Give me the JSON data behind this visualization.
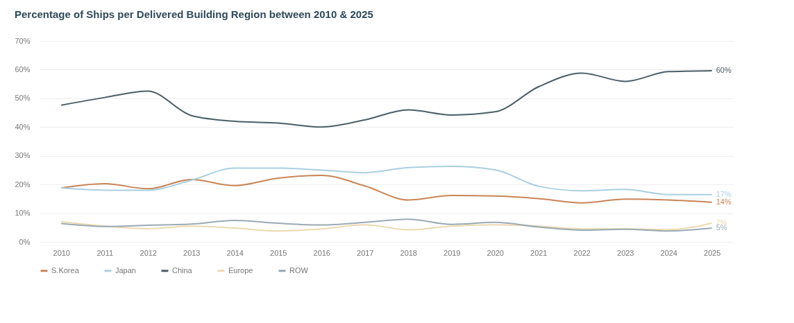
{
  "chart_data": {
    "type": "line",
    "title": "Percentage of Ships per Delivered Building Region between 2010 & 2025",
    "categories": [
      "2010",
      "2011",
      "2012",
      "2013",
      "2014",
      "2015",
      "2016",
      "2017",
      "2018",
      "2019",
      "2020",
      "2021",
      "2022",
      "2023",
      "2024",
      "2025"
    ],
    "ylim": [
      0,
      70
    ],
    "yticks": [
      {
        "value": 0,
        "label": "0%"
      },
      {
        "value": 10,
        "label": "10%"
      },
      {
        "value": 20,
        "label": "20%"
      },
      {
        "value": 30,
        "label": "30%"
      },
      {
        "value": 40,
        "label": "40%"
      },
      {
        "value": 50,
        "label": "50%"
      },
      {
        "value": 60,
        "label": "60%"
      },
      {
        "value": 70,
        "label": "70%"
      }
    ],
    "grid": "y",
    "legend": "bottom",
    "marker": "none",
    "line_style": "solid",
    "series": [
      {
        "name": "S.Korea",
        "color": "#c98455",
        "values": [
          18.8,
          20.3,
          18.5,
          21.7,
          19.6,
          22.2,
          23.2,
          19.5,
          14.6,
          16.2,
          16,
          15.1,
          13.6,
          14.9,
          14.6,
          13.8
        ],
        "value_labels": [
          null,
          null,
          null,
          null,
          null,
          null,
          null,
          null,
          null,
          null,
          null,
          null,
          null,
          null,
          null,
          "14%"
        ]
      },
      {
        "name": "Japan",
        "color": "#a9cfe0",
        "values": [
          18.8,
          18,
          18,
          21.5,
          25.7,
          25.7,
          25,
          24.1,
          25.9,
          26.3,
          25.1,
          19.4,
          17.8,
          18.3,
          16.5,
          16.5
        ],
        "value_labels": [
          null,
          null,
          null,
          null,
          null,
          null,
          null,
          null,
          null,
          null,
          null,
          null,
          null,
          null,
          null,
          "17%"
        ]
      },
      {
        "name": "China",
        "color": "#4a5e66",
        "values": [
          47.6,
          50.3,
          52.5,
          44,
          42,
          41.4,
          40,
          42.5,
          46,
          44.2,
          45.3,
          54,
          58.8,
          55.9,
          59.3,
          59.6
        ],
        "value_labels": [
          null,
          null,
          null,
          null,
          null,
          null,
          null,
          null,
          null,
          null,
          null,
          null,
          null,
          null,
          null,
          "60%"
        ]
      },
      {
        "name": "Europe",
        "color": "#ecd9ae",
        "values": [
          7,
          5.5,
          4.6,
          5.5,
          4.8,
          3.8,
          4.5,
          6,
          4.2,
          5.5,
          6,
          5.5,
          4.5,
          4.5,
          4.3,
          6.5
        ],
        "value_labels": [
          null,
          null,
          null,
          null,
          null,
          null,
          null,
          null,
          null,
          null,
          null,
          null,
          null,
          null,
          null,
          "7%"
        ]
      },
      {
        "name": "ROW",
        "color": "#9aaab3",
        "values": [
          6.4,
          5.4,
          5.8,
          6.2,
          7.5,
          6.5,
          5.9,
          6.8,
          7.9,
          6.1,
          6.8,
          5.2,
          4.1,
          4.4,
          3.8,
          4.8
        ],
        "value_labels": [
          null,
          null,
          null,
          null,
          null,
          null,
          null,
          null,
          null,
          null,
          null,
          null,
          null,
          null,
          null,
          "5%"
        ]
      }
    ]
  }
}
